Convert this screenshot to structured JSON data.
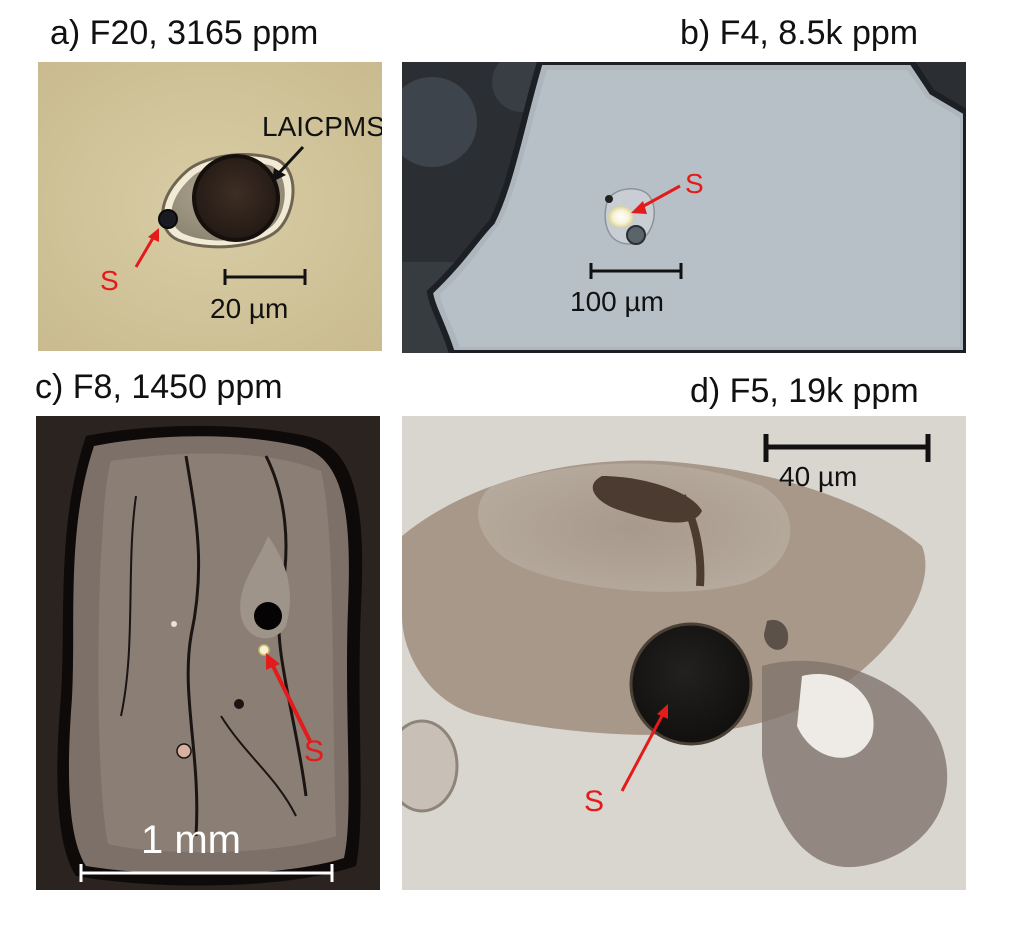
{
  "panels": {
    "a": {
      "title": "a) F20, 3165 ppm",
      "callout": "LAICPMS",
      "sulfide_label": "S",
      "scale": "20 µm"
    },
    "b": {
      "title": "b) F4, 8.5k ppm",
      "sulfide_label": "S",
      "scale": "100 µm"
    },
    "c": {
      "title": "c) F8, 1450 ppm",
      "sulfide_label": "S",
      "scale": "1 mm"
    },
    "d": {
      "title": "d) F5, 19k ppm",
      "sulfide_label": "S",
      "scale": "40 µm"
    }
  },
  "colors": {
    "arrow": "#e31b1b",
    "scalebar": "#111111",
    "scalebar_light": "#ffffff"
  }
}
